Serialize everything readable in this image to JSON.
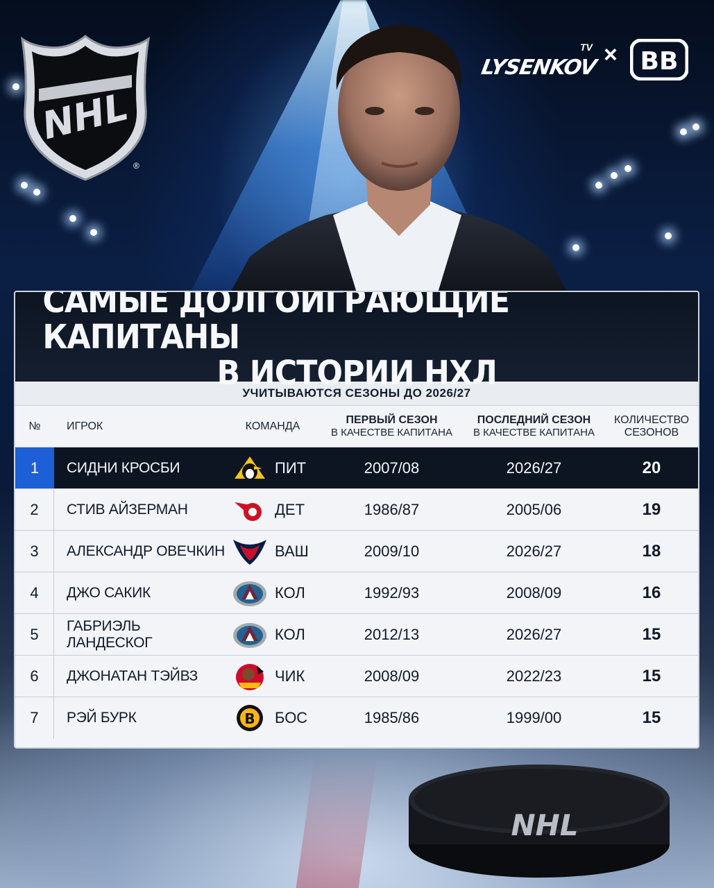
{
  "branding": {
    "nhl_logo_text": "NHL",
    "registered_mark": "®",
    "partner_text": "LYSENKOV",
    "partner_tv": "TV",
    "separator": "×",
    "partner2": "BB",
    "puck_text": "NHL"
  },
  "title": {
    "line1": "САМЫЕ ДОЛГОИГРАЮЩИЕ КАПИТАНЫ",
    "line2": "В ИСТОРИИ НХЛ",
    "subtitle": "УЧИТЫВАЮТСЯ СЕЗОНЫ ДО 2026/27"
  },
  "table": {
    "headers": {
      "num": "№",
      "player": "ИГРОК",
      "team": "КОМАНДА",
      "first_main": "ПЕРВЫЙ СЕЗОН",
      "first_sub": "В КАЧЕСТВЕ КАПИТАНА",
      "last_main": "ПОСЛЕДНИЙ СЕЗОН",
      "last_sub": "В КАЧЕСТВЕ КАПИТАНА",
      "count_main": "КОЛИЧЕСТВО",
      "count_sub": "СЕЗОНОВ"
    },
    "rows": [
      {
        "num": "1",
        "player": "СИДНИ КРОСБИ",
        "team_logo": "penguins-logo-icon",
        "team": "ПИТ",
        "first": "2007/08",
        "last": "2026/27",
        "count": "20"
      },
      {
        "num": "2",
        "player": "СТИВ АЙЗЕРМАН",
        "team_logo": "red-wings-logo-icon",
        "team": "ДЕТ",
        "first": "1986/87",
        "last": "2005/06",
        "count": "19"
      },
      {
        "num": "3",
        "player": "АЛЕКСАНДР ОВЕЧКИН",
        "team_logo": "capitals-logo-icon",
        "team": "ВАШ",
        "first": "2009/10",
        "last": "2026/27",
        "count": "18"
      },
      {
        "num": "4",
        "player": "ДЖО САКИК",
        "team_logo": "avalanche-logo-icon",
        "team": "КОЛ",
        "first": "1992/93",
        "last": "2008/09",
        "count": "16"
      },
      {
        "num": "5",
        "player": "ГАБРИЭЛЬ ЛАНДЕСКОГ",
        "team_logo": "avalanche-logo-icon",
        "team": "КОЛ",
        "first": "2012/13",
        "last": "2026/27",
        "count": "15"
      },
      {
        "num": "6",
        "player": "ДЖОНАТАН ТЭЙВЗ",
        "team_logo": "blackhawks-logo-icon",
        "team": "ЧИК",
        "first": "2008/09",
        "last": "2022/23",
        "count": "15"
      },
      {
        "num": "7",
        "player": "РЭЙ БУРК",
        "team_logo": "bruins-logo-icon",
        "team": "БОС",
        "first": "1985/86",
        "last": "1999/00",
        "count": "15"
      }
    ]
  },
  "colors": {
    "highlight_num": "#1c5fd6",
    "dark_band": "#0d1522",
    "table_bg": "#f2f4f7"
  }
}
